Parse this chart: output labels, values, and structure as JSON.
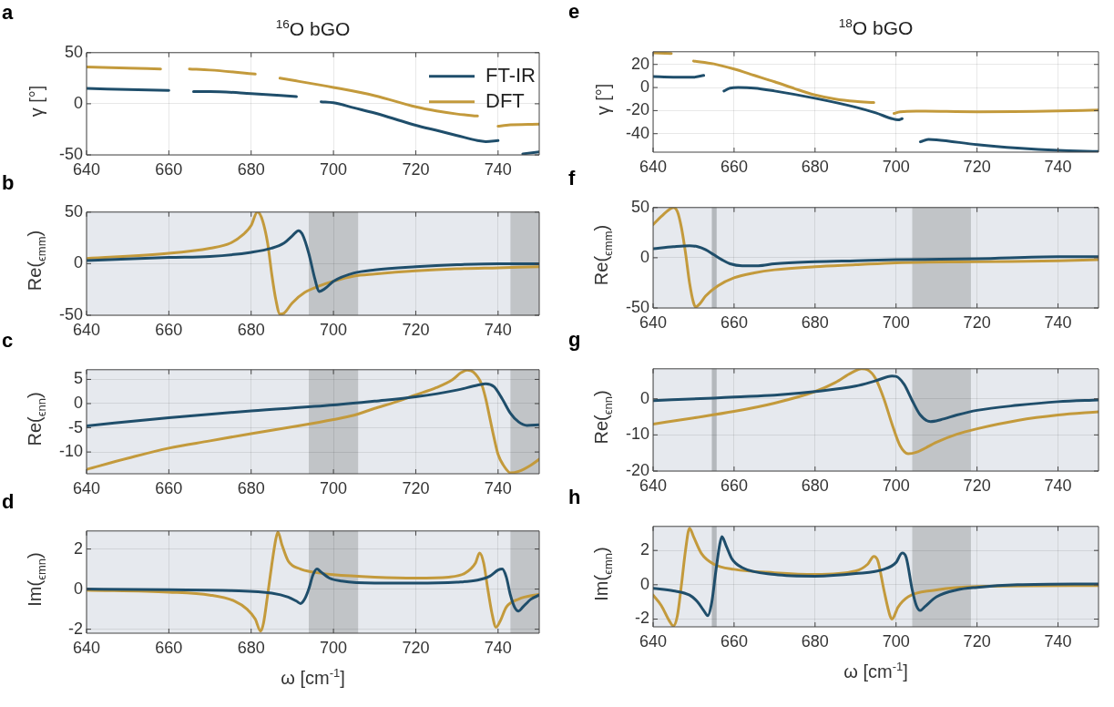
{
  "chart_data": [
    {
      "type": "line",
      "title": "$^{16}$O bGO",
      "ylabel": "γ [°]",
      "annotations": [
        "a"
      ],
      "xlim": [
        640,
        750
      ],
      "xticks": [
        640,
        660,
        680,
        700,
        720,
        740
      ],
      "ylim": [
        -50,
        50
      ],
      "yticks": [
        -50,
        0,
        50
      ],
      "grid": true,
      "legend": "top right",
      "series": [
        {
          "name": "FT-IR",
          "color": "#1f4e6b",
          "x": [
            640,
            650,
            660,
            663,
            666,
            670,
            680,
            691,
            694,
            697,
            700,
            705,
            710,
            715,
            720,
            725,
            730,
            735,
            737,
            740,
            743,
            746,
            750
          ],
          "values": [
            15,
            14,
            13,
            null,
            12,
            12,
            10,
            7,
            null,
            2,
            1,
            -4,
            -9,
            -15,
            -21,
            -26,
            -31,
            -36,
            -37,
            -36,
            null,
            -49,
            -47
          ]
        },
        {
          "name": "DFT",
          "color": "#c39a3c",
          "x": [
            640,
            650,
            658,
            661,
            665,
            670,
            681,
            684,
            687,
            690,
            700,
            710,
            720,
            725,
            730,
            735,
            738,
            740,
            742,
            750
          ],
          "values": [
            36,
            35,
            34,
            null,
            34,
            33,
            29,
            null,
            25,
            23,
            16,
            8,
            -3,
            -7,
            -10,
            -12,
            null,
            -22,
            -21,
            -20
          ]
        }
      ]
    },
    {
      "type": "line",
      "ylabel": "Re($_{ϵmm}$)",
      "annotations": [
        "b"
      ],
      "xlim": [
        640,
        750
      ],
      "xticks": [
        640,
        660,
        680,
        700,
        720,
        740
      ],
      "ylim": [
        -50,
        50
      ],
      "yticks": [
        -50,
        0,
        50
      ],
      "grid": true,
      "bands": [
        {
          "axis": "x",
          "from": 694,
          "to": 706,
          "color": "#c1c4c7"
        },
        {
          "axis": "x",
          "from": 743,
          "to": 750,
          "color": "#c1c4c7"
        }
      ],
      "series": [
        {
          "color": "#1f4e6b",
          "x": [
            640,
            660,
            670,
            680,
            685,
            688,
            690,
            691.5,
            692.5,
            694,
            695.5,
            696.5,
            698,
            700,
            705,
            710,
            720,
            730,
            740,
            750
          ],
          "values": [
            3,
            6,
            7,
            11,
            15,
            20,
            27,
            32,
            28,
            10,
            -15,
            -27,
            -24,
            -17,
            -9,
            -6,
            -3,
            -1,
            0,
            0
          ]
        },
        {
          "color": "#c39a3c",
          "x": [
            640,
            660,
            670,
            675,
            678,
            680,
            681.5,
            682.5,
            684,
            685,
            686,
            687,
            688,
            690,
            693,
            697,
            700,
            705,
            710,
            720,
            730,
            740,
            750
          ],
          "values": [
            5,
            10,
            15,
            20,
            28,
            37,
            50,
            45,
            20,
            -10,
            -35,
            -49,
            -48,
            -38,
            -28,
            -21,
            -17,
            -12,
            -10,
            -7,
            -5,
            -4,
            -3
          ]
        }
      ]
    },
    {
      "type": "line",
      "ylabel": "Re($_{ϵnn}$)",
      "annotations": [
        "c"
      ],
      "xlim": [
        640,
        750
      ],
      "xticks": [
        640,
        660,
        680,
        700,
        720,
        740
      ],
      "ylim": [
        -14.5,
        7
      ],
      "yticks": [
        -10,
        -5,
        0,
        5
      ],
      "grid": true,
      "bands": [
        {
          "axis": "x",
          "from": 694,
          "to": 706,
          "color": "#c1c4c7"
        },
        {
          "axis": "x",
          "from": 743,
          "to": 750,
          "color": "#c1c4c7"
        }
      ],
      "series": [
        {
          "color": "#1f4e6b",
          "x": [
            640,
            660,
            680,
            700,
            710,
            720,
            730,
            735,
            737,
            739,
            741,
            743,
            745,
            747,
            750
          ],
          "values": [
            -4.6,
            -2.9,
            -1.5,
            -0.3,
            0.5,
            1.4,
            2.8,
            3.8,
            4.1,
            3.5,
            1,
            -2,
            -3.8,
            -4.5,
            -4.4
          ]
        },
        {
          "color": "#c39a3c",
          "x": [
            640,
            650,
            660,
            670,
            680,
            690,
            700,
            705,
            710,
            715,
            720,
            725,
            729,
            731,
            732.5,
            734,
            736,
            737,
            738,
            739,
            740,
            741.5,
            743,
            745,
            748,
            750
          ],
          "values": [
            -13.6,
            -11.3,
            -9.2,
            -7.7,
            -6.2,
            -4.8,
            -3.3,
            -2.4,
            -1,
            0.3,
            1.8,
            3.3,
            5,
            6.4,
            6.9,
            6.5,
            4,
            1,
            -3,
            -7,
            -10.5,
            -13,
            -14.3,
            -14,
            -12.7,
            -11.5
          ]
        }
      ]
    },
    {
      "type": "line",
      "ylabel": "Im($_{ϵmn}$)",
      "xlabel": "ω [cm$^{-1}$]",
      "annotations": [
        "d"
      ],
      "xlim": [
        640,
        750
      ],
      "xticks": [
        640,
        660,
        680,
        700,
        720,
        740
      ],
      "ylim": [
        -2.2,
        2.9
      ],
      "yticks": [
        -2,
        0,
        2
      ],
      "grid": true,
      "bands": [
        {
          "axis": "x",
          "from": 694,
          "to": 706,
          "color": "#c1c4c7"
        },
        {
          "axis": "x",
          "from": 743,
          "to": 750,
          "color": "#c1c4c7"
        }
      ],
      "series": [
        {
          "color": "#1f4e6b",
          "x": [
            640,
            660,
            675,
            685,
            689,
            691,
            692,
            693,
            694,
            695,
            696,
            697,
            699,
            702,
            710,
            720,
            730,
            735,
            738,
            740,
            741,
            742,
            743,
            744,
            745,
            746,
            748,
            750
          ],
          "values": [
            0,
            -0.03,
            -0.07,
            -0.2,
            -0.4,
            -0.6,
            -0.72,
            -0.5,
            0,
            0.7,
            1,
            0.85,
            0.55,
            0.4,
            0.3,
            0.3,
            0.35,
            0.45,
            0.65,
            0.95,
            1,
            0.6,
            -0.3,
            -0.9,
            -1.1,
            -0.9,
            -0.5,
            -0.3
          ]
        },
        {
          "color": "#c39a3c",
          "x": [
            640,
            660,
            670,
            676,
            679,
            681,
            682.3,
            683,
            684,
            685,
            686,
            686.5,
            687.5,
            689,
            692,
            695,
            700,
            710,
            720,
            728,
            732,
            734.5,
            735.5,
            736.5,
            737.5,
            738.5,
            739.5,
            740.5,
            742,
            745,
            750
          ],
          "values": [
            -0.05,
            -0.15,
            -0.3,
            -0.6,
            -1,
            -1.5,
            -2.1,
            -1.7,
            -0.3,
            1.2,
            2.5,
            2.85,
            2.2,
            1.4,
            1,
            0.85,
            0.72,
            0.6,
            0.55,
            0.6,
            0.8,
            1.3,
            1.8,
            1.3,
            0,
            -1.2,
            -1.9,
            -1.6,
            -0.9,
            -0.5,
            -0.25
          ]
        }
      ]
    },
    {
      "type": "line",
      "title": "$^{18}$O bGO",
      "ylabel": "γ [°]",
      "annotations": [
        "e"
      ],
      "xlim": [
        640,
        750
      ],
      "xticks": [
        640,
        660,
        680,
        700,
        720,
        740
      ],
      "ylim": [
        -56,
        31
      ],
      "yticks": [
        -40,
        -20,
        0,
        20
      ],
      "grid": true,
      "series": [
        {
          "color": "#1f4e6b",
          "x": [
            640,
            645,
            650,
            652.5,
            655,
            657.5,
            659,
            661,
            665,
            670,
            680,
            690,
            695,
            699,
            700.5,
            701.5,
            704,
            706,
            708,
            710,
            720,
            730,
            740,
            750
          ],
          "values": [
            9.5,
            9,
            9,
            10.5,
            null,
            -3,
            -0.5,
            0,
            -0.5,
            -3,
            -9.3,
            -17,
            -22,
            -27,
            -28,
            -27,
            null,
            -47,
            -45,
            -45.3,
            -49.5,
            -52.5,
            -54.5,
            -55.4
          ]
        },
        {
          "color": "#c39a3c",
          "x": [
            640,
            644.5,
            647,
            650,
            655,
            660,
            665,
            670,
            675,
            680,
            685,
            690,
            694.5,
            697,
            699.5,
            701,
            705,
            720,
            740,
            750
          ],
          "values": [
            30,
            29.5,
            null,
            23,
            20.5,
            16,
            10.5,
            5,
            -1,
            -6.5,
            -10,
            -12,
            -13,
            null,
            -22.5,
            -21,
            -20.5,
            -21,
            -20.3,
            -19.5
          ]
        }
      ]
    },
    {
      "type": "line",
      "ylabel": "Re($_{ϵmm}$)",
      "annotations": [
        "f"
      ],
      "xlim": [
        640,
        750
      ],
      "xticks": [
        640,
        660,
        680,
        700,
        720,
        740
      ],
      "ylim": [
        -50,
        50
      ],
      "yticks": [
        -50,
        0,
        50
      ],
      "grid": true,
      "bands": [
        {
          "axis": "x",
          "from": 654.5,
          "to": 655.7,
          "color": "#b4b8bc"
        },
        {
          "axis": "x",
          "from": 704,
          "to": 718.5,
          "color": "#c1c4c7"
        }
      ],
      "series": [
        {
          "color": "#1f4e6b",
          "x": [
            640,
            645,
            649,
            651,
            653,
            655,
            657,
            659,
            662,
            666,
            670,
            680,
            690,
            700,
            720,
            740,
            750
          ],
          "values": [
            9,
            11,
            12,
            11,
            8,
            3,
            -2,
            -6,
            -8,
            -8,
            -6,
            -4,
            -3,
            -2,
            -1,
            1,
            1
          ]
        },
        {
          "color": "#c39a3c",
          "x": [
            640,
            642,
            644,
            645,
            646,
            647,
            648,
            649,
            650,
            650.5,
            651.5,
            653,
            656,
            660,
            665,
            670,
            680,
            690,
            700,
            720,
            740,
            750
          ],
          "values": [
            33,
            41,
            48,
            50,
            46,
            30,
            5,
            -25,
            -45,
            -49,
            -46,
            -38,
            -28,
            -20,
            -15,
            -12,
            -9,
            -7,
            -5,
            -4,
            -3,
            -2
          ]
        }
      ]
    },
    {
      "type": "line",
      "ylabel": "Re($_{ϵnn}$)",
      "annotations": [
        "g"
      ],
      "xlim": [
        640,
        750
      ],
      "xticks": [
        640,
        660,
        680,
        700,
        720,
        740
      ],
      "ylim": [
        -20,
        8.3
      ],
      "yticks": [
        -20,
        -10,
        0
      ],
      "grid": true,
      "bands": [
        {
          "axis": "x",
          "from": 654.5,
          "to": 655.7,
          "color": "#b4b8bc"
        },
        {
          "axis": "x",
          "from": 704,
          "to": 718.5,
          "color": "#c1c4c7"
        }
      ],
      "series": [
        {
          "color": "#1f4e6b",
          "x": [
            640,
            655,
            660,
            670,
            680,
            690,
            695,
            699,
            700,
            702,
            704,
            706,
            708.5,
            711,
            715,
            720,
            730,
            740,
            750
          ],
          "values": [
            -0.5,
            0.2,
            0.5,
            1,
            2,
            3.5,
            5,
            6.3,
            6.2,
            4,
            -0.5,
            -4.5,
            -6.3,
            -5.8,
            -4.5,
            -3.2,
            -1.8,
            -0.8,
            -0.3
          ]
        },
        {
          "color": "#c39a3c",
          "x": [
            640,
            650,
            660,
            670,
            680,
            685,
            689,
            691.5,
            693,
            695,
            697,
            699,
            701,
            703,
            705,
            710,
            715,
            720,
            730,
            740,
            750
          ],
          "values": [
            -7,
            -5.3,
            -3.5,
            -1.2,
            2,
            4.5,
            7.2,
            8.3,
            8,
            5.5,
            0,
            -7,
            -13,
            -15.2,
            -14.8,
            -12,
            -9.8,
            -8.3,
            -6,
            -4.5,
            -3.6
          ]
        }
      ]
    },
    {
      "type": "line",
      "ylabel": "Im($_{ϵmn}$)",
      "xlabel": "ω [cm$^{-1}$]",
      "annotations": [
        "h"
      ],
      "xlim": [
        640,
        750
      ],
      "xticks": [
        640,
        660,
        680,
        700,
        720,
        740
      ],
      "ylim": [
        -2.45,
        3.4
      ],
      "yticks": [
        -2,
        0,
        2
      ],
      "grid": true,
      "bands": [
        {
          "axis": "x",
          "from": 654.5,
          "to": 655.7,
          "color": "#b4b8bc"
        },
        {
          "axis": "x",
          "from": 704,
          "to": 718.5,
          "color": "#c1c4c7"
        }
      ],
      "series": [
        {
          "color": "#1f4e6b",
          "x": [
            640,
            645,
            649,
            651,
            652.5,
            653.5,
            654.5,
            655.5,
            656.5,
            657,
            658,
            659.5,
            662,
            670,
            680,
            690,
            697,
            700,
            701.5,
            702.5,
            704,
            705,
            706,
            707,
            710,
            715,
            720,
            730,
            750
          ],
          "values": [
            -0.2,
            -0.35,
            -0.6,
            -1,
            -1.5,
            -1.8,
            -1,
            0.8,
            2.4,
            2.8,
            2.3,
            1.5,
            1,
            0.6,
            0.5,
            0.65,
            0.9,
            1.3,
            1.85,
            1.6,
            -0.3,
            -1.2,
            -1.5,
            -1.3,
            -0.7,
            -0.3,
            -0.15,
            0,
            0.05
          ]
        },
        {
          "color": "#c39a3c",
          "x": [
            640,
            642,
            644,
            645,
            646,
            647,
            648,
            649,
            650,
            652,
            655,
            660,
            670,
            680,
            690,
            693,
            694.5,
            695.5,
            697,
            698.5,
            699,
            700.5,
            703,
            710,
            720,
            750
          ],
          "values": [
            -0.6,
            -1.2,
            -2.1,
            -2.4,
            -1.8,
            0,
            2,
            3.3,
            2.8,
            1.8,
            1.2,
            0.9,
            0.7,
            0.6,
            0.8,
            1.2,
            1.65,
            1.4,
            -0.3,
            -1.8,
            -2,
            -1.3,
            -0.7,
            -0.3,
            -0.1,
            -0.05
          ]
        }
      ]
    }
  ]
}
